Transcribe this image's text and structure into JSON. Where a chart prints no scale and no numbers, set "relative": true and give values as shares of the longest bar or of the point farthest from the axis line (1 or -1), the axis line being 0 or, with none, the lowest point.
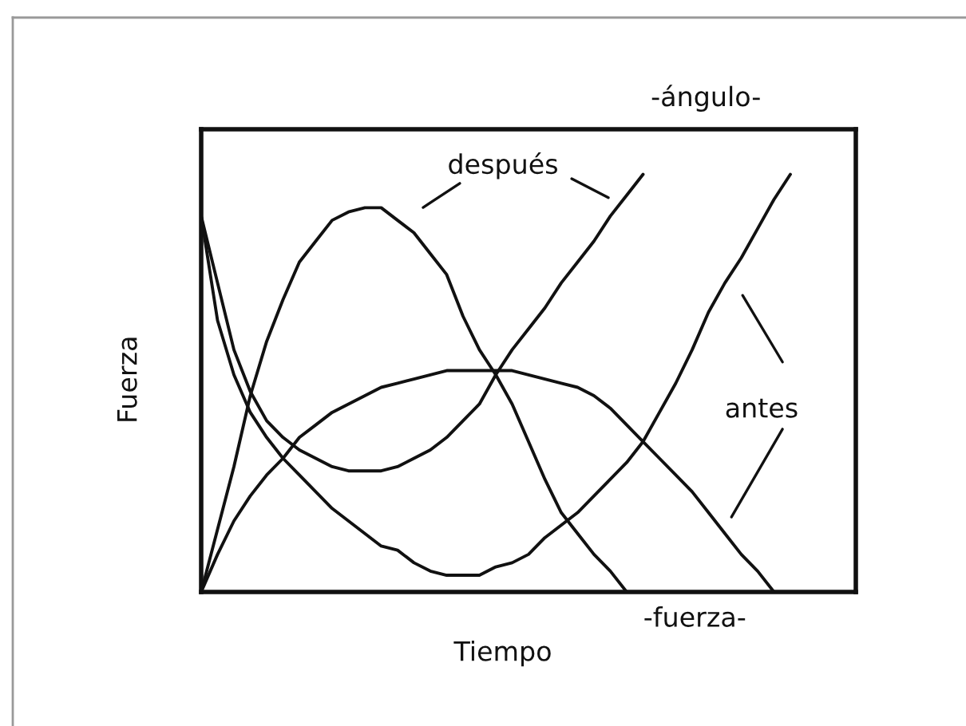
{
  "chart_data": {
    "type": "line",
    "relative": true,
    "xlabel": "Tiempo",
    "ylabel": "Fuerza",
    "annotations": [
      "-ángulo-",
      "después",
      "antes",
      "-fuerza-"
    ],
    "categories": [
      null,
      null,
      null,
      null,
      null,
      null,
      null,
      null,
      null,
      null,
      null,
      null,
      null,
      null,
      null,
      null,
      null,
      null,
      null,
      null,
      null,
      null,
      null,
      null,
      null,
      null,
      null,
      null,
      null,
      null,
      null,
      null,
      null,
      null,
      null,
      null,
      null,
      null,
      null,
      null,
      null
    ],
    "series": [
      {
        "color": "#111111",
        "values": [
          0,
          0.15,
          0.3,
          0.47,
          0.6,
          0.7,
          0.79,
          0.84,
          0.89,
          0.91,
          0.92,
          0.92,
          0.89,
          0.86,
          0.81,
          0.76,
          0.66,
          0.58,
          0.52,
          0.45,
          0.36,
          0.27,
          0.19,
          0.14,
          0.09,
          0.05,
          0,
          null,
          null,
          null,
          null,
          null,
          null,
          null,
          null,
          null,
          null,
          null,
          null,
          null,
          null
        ]
      },
      {
        "color": "#111111",
        "values": [
          0.9,
          0.74,
          0.58,
          0.48,
          0.41,
          0.37,
          0.34,
          0.32,
          0.3,
          0.29,
          0.29,
          0.29,
          0.3,
          0.32,
          0.34,
          0.37,
          0.41,
          0.45,
          0.52,
          0.58,
          0.63,
          0.68,
          0.74,
          0.79,
          0.84,
          0.9,
          0.95,
          1.0,
          null,
          null,
          null,
          null,
          null,
          null,
          null,
          null,
          null,
          null,
          null,
          null,
          null
        ]
      },
      {
        "color": "#111111",
        "values": [
          0.9,
          0.65,
          0.52,
          0.43,
          0.37,
          0.32,
          0.28,
          0.24,
          0.2,
          0.17,
          0.14,
          0.11,
          0.1,
          0.07,
          0.05,
          0.04,
          0.04,
          0.04,
          0.06,
          0.07,
          0.09,
          0.13,
          0.16,
          0.19,
          0.23,
          0.27,
          0.31,
          0.36,
          0.43,
          0.5,
          0.58,
          0.67,
          0.74,
          0.8,
          0.87,
          0.94,
          1.0,
          null,
          null,
          null,
          null
        ]
      },
      {
        "color": "#111111",
        "values": [
          0,
          0.09,
          0.17,
          0.23,
          0.28,
          0.32,
          0.37,
          0.4,
          0.43,
          0.45,
          0.47,
          0.49,
          0.5,
          0.51,
          0.52,
          0.53,
          0.53,
          0.53,
          0.53,
          0.53,
          0.52,
          0.51,
          0.5,
          0.49,
          0.47,
          0.44,
          0.4,
          0.36,
          0.32,
          0.28,
          0.24,
          0.19,
          0.14,
          0.09,
          0.05,
          0,
          null,
          null,
          null,
          null,
          null
        ]
      }
    ]
  }
}
